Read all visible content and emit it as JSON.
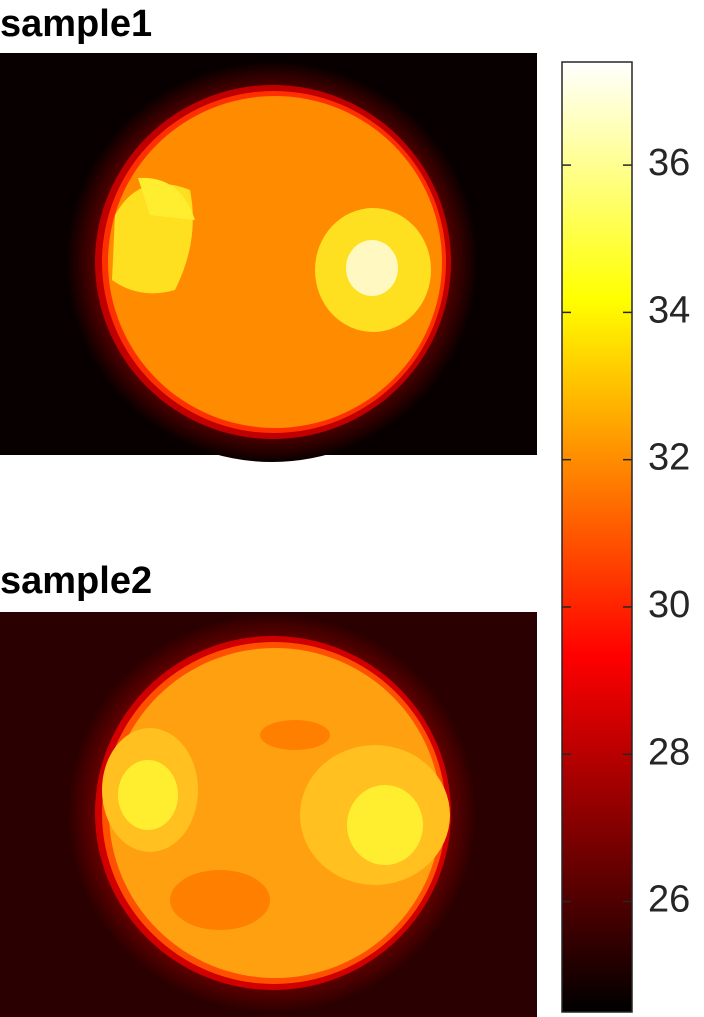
{
  "chart_data": {
    "type": "heatmap",
    "panels": [
      {
        "title": "sample1"
      },
      {
        "title": "sample2"
      }
    ],
    "colorbar": {
      "colormap": "hot",
      "lim": [
        24.5,
        37.4
      ],
      "ticks": [
        26,
        28,
        30,
        32,
        34,
        36
      ]
    }
  }
}
